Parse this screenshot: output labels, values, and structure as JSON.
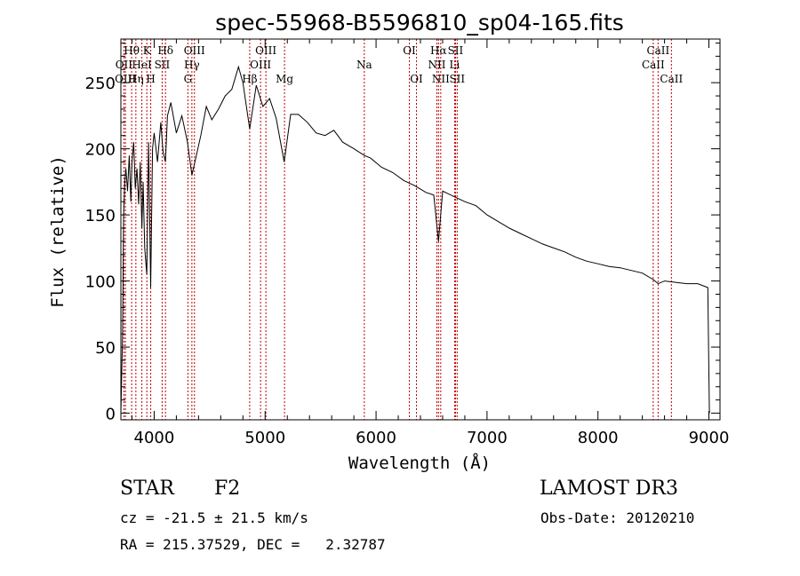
{
  "chart_data": {
    "type": "line",
    "title": "spec-55968-B5596810_sp04-165.fits",
    "xlabel": "Wavelength (Å)",
    "ylabel": "Flux (relative)",
    "xlim": [
      3700,
      9100
    ],
    "ylim": [
      -5,
      283
    ],
    "xticks": [
      4000,
      5000,
      6000,
      7000,
      8000,
      9000
    ],
    "yticks": [
      0,
      50,
      100,
      150,
      200,
      250
    ],
    "x_tick_labels": [
      "4000",
      "5000",
      "6000",
      "7000",
      "8000",
      "9000"
    ],
    "y_tick_labels": [
      "0",
      "50",
      "100",
      "150",
      "200",
      "250"
    ],
    "grid": false,
    "series": [
      {
        "name": "flux",
        "x": [
          3700,
          3715,
          3725,
          3735,
          3745,
          3760,
          3775,
          3790,
          3800,
          3815,
          3830,
          3845,
          3860,
          3875,
          3889,
          3900,
          3915,
          3933,
          3950,
          3968,
          3985,
          4000,
          4030,
          4060,
          4080,
          4101,
          4120,
          4150,
          4200,
          4250,
          4300,
          4340,
          4380,
          4420,
          4470,
          4520,
          4580,
          4640,
          4700,
          4760,
          4800,
          4861,
          4920,
          4980,
          5040,
          5100,
          5172,
          5230,
          5300,
          5380,
          5460,
          5540,
          5620,
          5700,
          5800,
          5893,
          5950,
          6050,
          6150,
          6250,
          6350,
          6450,
          6520,
          6563,
          6600,
          6700,
          6800,
          6900,
          7000,
          7100,
          7200,
          7300,
          7400,
          7500,
          7600,
          7700,
          7800,
          7900,
          8000,
          8100,
          8200,
          8300,
          8400,
          8500,
          8542,
          8600,
          8700,
          8800,
          8900,
          8990,
          9000,
          9005
        ],
        "y": [
          0,
          60,
          150,
          175,
          185,
          168,
          195,
          160,
          190,
          205,
          170,
          185,
          158,
          190,
          140,
          175,
          125,
          105,
          205,
          95,
          200,
          212,
          190,
          220,
          198,
          190,
          225,
          235,
          212,
          225,
          205,
          180,
          195,
          210,
          232,
          222,
          230,
          240,
          245,
          262,
          250,
          215,
          248,
          232,
          238,
          223,
          190,
          226,
          226,
          220,
          212,
          210,
          214,
          205,
          200,
          195,
          193,
          186,
          182,
          176,
          172,
          167,
          165,
          130,
          168,
          164,
          160,
          157,
          150,
          145,
          140,
          136,
          132,
          128,
          125,
          122,
          118,
          115,
          113,
          111,
          110,
          108,
          106,
          101,
          98,
          100,
          99,
          98,
          98,
          95,
          30,
          0
        ]
      }
    ],
    "spectral_lines": [
      {
        "label": "Hθ",
        "x": 3797,
        "row": 0
      },
      {
        "label": "OII",
        "x": 3727,
        "row": 1
      },
      {
        "label": "OIII",
        "x": 3741,
        "row": 2
      },
      {
        "label": "K",
        "x": 3934,
        "row": 0
      },
      {
        "label": "HeI",
        "x": 3889,
        "row": 1
      },
      {
        "label": "Hη",
        "x": 3835,
        "row": 2
      },
      {
        "label": "Hδ",
        "x": 4102,
        "row": 0
      },
      {
        "label": "SII",
        "x": 4072,
        "row": 1
      },
      {
        "label": "H",
        "x": 3969,
        "row": 2
      },
      {
        "label": "OIII",
        "x": 4363,
        "row": 0
      },
      {
        "label": "Hγ",
        "x": 4340,
        "row": 1
      },
      {
        "label": "G",
        "x": 4304,
        "row": 2
      },
      {
        "label": "OIII",
        "x": 5007,
        "row": 0
      },
      {
        "label": "OIII",
        "x": 4959,
        "row": 1
      },
      {
        "label": "Hβ",
        "x": 4861,
        "row": 2
      },
      {
        "label": "Mg",
        "x": 5175,
        "row": 2
      },
      {
        "label": "Na",
        "x": 5894,
        "row": 1
      },
      {
        "label": "OI",
        "x": 6300,
        "row": 0
      },
      {
        "label": "OI",
        "x": 6364,
        "row": 2
      },
      {
        "label": "Hα",
        "x": 6563,
        "row": 0
      },
      {
        "label": "SII",
        "x": 6716,
        "row": 0
      },
      {
        "label": "NII",
        "x": 6548,
        "row": 1
      },
      {
        "label": "Li",
        "x": 6708,
        "row": 1
      },
      {
        "label": "NII",
        "x": 6583,
        "row": 2
      },
      {
        "label": "SII",
        "x": 6731,
        "row": 2
      },
      {
        "label": "CaII",
        "x": 8542,
        "row": 0
      },
      {
        "label": "CaII",
        "x": 8498,
        "row": 1
      },
      {
        "label": "CaII",
        "x": 8662,
        "row": 2
      }
    ]
  },
  "info": {
    "object_class": "STAR",
    "subclass": "F2",
    "survey": "LAMOST DR3",
    "redshift": "cz = -21.5 ± 21.5 km/s",
    "obs_date": "Obs-Date: 20120210",
    "coordinates": "RA = 215.37529, DEC =   2.32787"
  }
}
